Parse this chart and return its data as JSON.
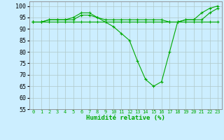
{
  "xlabel": "Humidité relative (%)",
  "background_color": "#cceeff",
  "grid_color": "#aacccc",
  "line_color": "#00aa00",
  "xlim": [
    -0.5,
    23.5
  ],
  "ylim": [
    55,
    102
  ],
  "yticks": [
    55,
    60,
    65,
    70,
    75,
    80,
    85,
    90,
    95,
    100
  ],
  "xticks": [
    0,
    1,
    2,
    3,
    4,
    5,
    6,
    7,
    8,
    9,
    10,
    11,
    12,
    13,
    14,
    15,
    16,
    17,
    18,
    19,
    20,
    21,
    22,
    23
  ],
  "series1_x": [
    0,
    1,
    2,
    3,
    4,
    5,
    6,
    7,
    8,
    9,
    10,
    11,
    12,
    13,
    14,
    15,
    16,
    17,
    18,
    19,
    20,
    21,
    22,
    23
  ],
  "series1_y": [
    93,
    93,
    94,
    94,
    94,
    95,
    97,
    97,
    95,
    94,
    94,
    94,
    94,
    94,
    94,
    94,
    94,
    93,
    93,
    94,
    94,
    94,
    97,
    99
  ],
  "series2_x": [
    0,
    1,
    2,
    3,
    4,
    5,
    6,
    7,
    8,
    9,
    10,
    11,
    12,
    13,
    14,
    15,
    16,
    17,
    18,
    19,
    20,
    21,
    22,
    23
  ],
  "series2_y": [
    93,
    93,
    94,
    94,
    94,
    94,
    96,
    96,
    95,
    93,
    91,
    88,
    85,
    76,
    68,
    65,
    67,
    80,
    93,
    94,
    94,
    97,
    99,
    100
  ],
  "series3_x": [
    0,
    1,
    2,
    3,
    4,
    5,
    6,
    7,
    8,
    9,
    10,
    11,
    12,
    13,
    14,
    15,
    16,
    17,
    18,
    19,
    20,
    21,
    22,
    23
  ],
  "series3_y": [
    93,
    93,
    93,
    93,
    93,
    93,
    93,
    93,
    93,
    93,
    93,
    93,
    93,
    93,
    93,
    93,
    93,
    93,
    93,
    93,
    93,
    93,
    93,
    93
  ]
}
